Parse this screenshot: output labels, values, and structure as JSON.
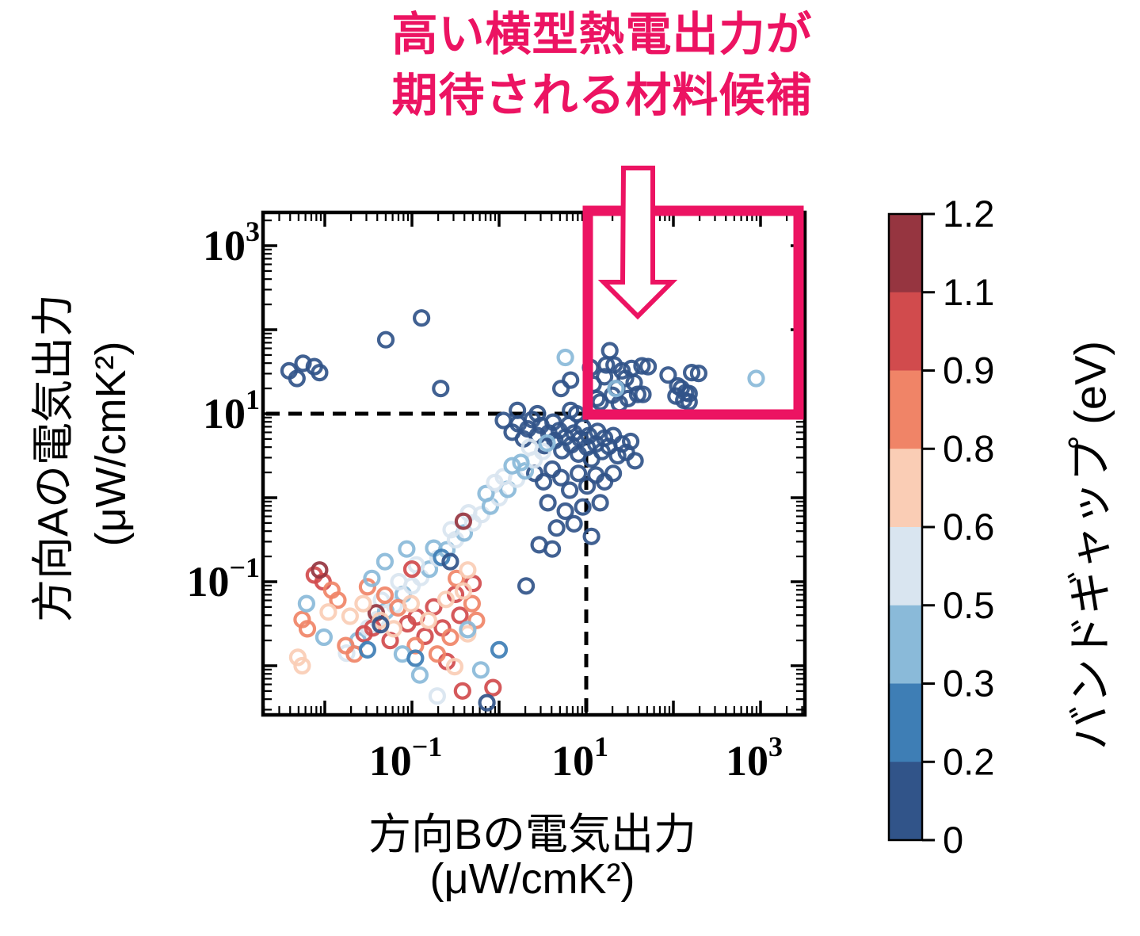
{
  "title": {
    "line1": "高い横型熱電出力が",
    "line2": "期待される材料候補",
    "color": "#EC1362"
  },
  "x_axis": {
    "label_line1": "方向Bの電気出力",
    "label_line2": "(μW/cmK²)",
    "tick_base": "10",
    "tick_exponents_display": [
      "−1",
      "1",
      "3"
    ]
  },
  "y_axis": {
    "label_line1": "方向Aの電気出力",
    "label_line2": "(μW/cmK²)",
    "tick_base": "10",
    "tick_exponents_display": [
      "3",
      "1",
      "−1"
    ]
  },
  "colorbar": {
    "label": "バンドギャップ (eV)",
    "tick_labels": [
      "1.2",
      "1.1",
      "0.9",
      "0.8",
      "0.6",
      "0.5",
      "0.3",
      "0.2",
      "0"
    ],
    "segment_colors_top_to_bottom": [
      "#963540",
      "#D14B4D",
      "#F08467",
      "#FACDB5",
      "#D9E5F0",
      "#8ABAD9",
      "#3E7EB5",
      "#315489"
    ]
  },
  "colors": {
    "accent_pink": "#EC1362",
    "axis_black": "#000000"
  },
  "chart_data": {
    "type": "scatter",
    "x_scale": "log",
    "y_scale": "log",
    "xlabel": "方向Bの電気出力 (μW/cmK²)",
    "ylabel": "方向Aの電気出力 (μW/cmK²)",
    "color_label": "バンドギャップ (eV)",
    "xlim_log10": [
      -2.71,
      3.51
    ],
    "ylim_log10": [
      -2.59,
      3.4
    ],
    "x_ticks_log10": [
      -1,
      1,
      3
    ],
    "y_ticks_log10": [
      3,
      1,
      -1
    ],
    "grid": false,
    "reference_lines": {
      "x_log10": 1,
      "y_log10": 1,
      "style": "dashed"
    },
    "highlight_region": {
      "x_min_log10": 1,
      "y_min_log10": 1,
      "x_max_log10": 3.44,
      "y_max_log10": 3.42,
      "note": "高い横型熱電出力が期待される材料候補"
    },
    "color_bins": [
      {
        "min": 0.0,
        "max": 0.2,
        "color": "#315489"
      },
      {
        "min": 0.2,
        "max": 0.3,
        "color": "#3E7EB5"
      },
      {
        "min": 0.3,
        "max": 0.5,
        "color": "#8ABAD9"
      },
      {
        "min": 0.5,
        "max": 0.6,
        "color": "#D9E5F0"
      },
      {
        "min": 0.6,
        "max": 0.8,
        "color": "#FACDB5"
      },
      {
        "min": 0.8,
        "max": 0.9,
        "color": "#F08467"
      },
      {
        "min": 0.9,
        "max": 1.1,
        "color": "#D14B4D"
      },
      {
        "min": 1.1,
        "max": 1.2,
        "color": "#963540"
      }
    ],
    "points_log10_x_y_bandgap_eV": [
      [
        -2.41,
        1.51,
        0.05
      ],
      [
        -2.32,
        1.42,
        0.1
      ],
      [
        -2.25,
        1.6,
        0.05
      ],
      [
        -2.12,
        1.56,
        0.1
      ],
      [
        -2.06,
        1.49,
        0.05
      ],
      [
        -1.3,
        1.88,
        0.05
      ],
      [
        -0.89,
        2.14,
        0.1
      ],
      [
        -0.67,
        1.3,
        0.05
      ],
      [
        0.21,
        1.04,
        0.1
      ],
      [
        0.44,
        1.0,
        0.05
      ],
      [
        0.82,
        1.04,
        0.1
      ],
      [
        0.89,
        1.0,
        0.05
      ],
      [
        0.71,
        1.3,
        0.1
      ],
      [
        0.82,
        1.4,
        0.05
      ],
      [
        0.76,
        1.67,
        0.45
      ],
      [
        1.27,
        1.75,
        0.05
      ],
      [
        1.23,
        1.58,
        0.1
      ],
      [
        1.32,
        1.58,
        0.05
      ],
      [
        1.21,
        1.44,
        0.1
      ],
      [
        1.41,
        1.51,
        0.05
      ],
      [
        1.52,
        1.54,
        0.1
      ],
      [
        1.55,
        1.37,
        0.05
      ],
      [
        1.64,
        1.57,
        0.1
      ],
      [
        1.71,
        1.56,
        0.05
      ],
      [
        1.59,
        1.23,
        0.1
      ],
      [
        1.65,
        1.23,
        0.05
      ],
      [
        1.94,
        1.46,
        0.1
      ],
      [
        2.05,
        1.33,
        0.05
      ],
      [
        2.09,
        1.3,
        0.1
      ],
      [
        2.14,
        1.25,
        0.05
      ],
      [
        2.18,
        1.24,
        0.1
      ],
      [
        2.21,
        1.49,
        0.05
      ],
      [
        2.29,
        1.48,
        0.1
      ],
      [
        2.03,
        1.21,
        0.05
      ],
      [
        2.12,
        1.16,
        0.1
      ],
      [
        2.18,
        1.14,
        0.05
      ],
      [
        1.16,
        1.14,
        0.1
      ],
      [
        1.12,
        1.18,
        0.05
      ],
      [
        1.35,
        1.3,
        0.1
      ],
      [
        1.45,
        1.42,
        0.05
      ],
      [
        1.3,
        1.22,
        0.1
      ],
      [
        1.48,
        1.18,
        0.05
      ],
      [
        1.38,
        1.12,
        0.15
      ],
      [
        1.05,
        1.55,
        0.1
      ],
      [
        1.08,
        1.35,
        0.05
      ],
      [
        1.34,
        1.3,
        0.35
      ],
      [
        2.95,
        1.42,
        0.45
      ],
      [
        0.05,
        0.92,
        0.1
      ],
      [
        0.15,
        0.78,
        0.05
      ],
      [
        0.22,
        0.88,
        0.1
      ],
      [
        0.28,
        0.7,
        0.15
      ],
      [
        0.33,
        0.82,
        0.05
      ],
      [
        0.38,
        0.93,
        0.1
      ],
      [
        0.44,
        0.74,
        0.05
      ],
      [
        0.48,
        0.86,
        0.1
      ],
      [
        0.52,
        0.62,
        0.15
      ],
      [
        0.57,
        0.77,
        0.05
      ],
      [
        0.62,
        0.9,
        0.1
      ],
      [
        0.64,
        0.68,
        0.05
      ],
      [
        0.69,
        0.8,
        0.1
      ],
      [
        0.72,
        0.56,
        0.15
      ],
      [
        0.76,
        0.72,
        0.05
      ],
      [
        0.8,
        0.87,
        0.1
      ],
      [
        0.83,
        0.63,
        0.05
      ],
      [
        0.86,
        0.77,
        0.1
      ],
      [
        0.91,
        0.52,
        0.15
      ],
      [
        0.93,
        0.7,
        0.05
      ],
      [
        0.96,
        0.84,
        0.1
      ],
      [
        1.01,
        0.6,
        0.05
      ],
      [
        1.03,
        0.74,
        0.1
      ],
      [
        1.06,
        0.46,
        0.15
      ],
      [
        1.11,
        0.64,
        0.05
      ],
      [
        1.13,
        0.79,
        0.1
      ],
      [
        1.18,
        0.55,
        0.05
      ],
      [
        1.21,
        0.71,
        0.1
      ],
      [
        1.26,
        0.61,
        0.15
      ],
      [
        1.31,
        0.74,
        0.05
      ],
      [
        1.36,
        0.5,
        0.1
      ],
      [
        1.41,
        0.64,
        0.05
      ],
      [
        1.46,
        0.54,
        0.1
      ],
      [
        1.51,
        0.67,
        0.05
      ],
      [
        1.56,
        0.44,
        0.15
      ],
      [
        0.41,
        0.29,
        0.05
      ],
      [
        0.51,
        0.19,
        0.1
      ],
      [
        0.61,
        0.34,
        0.05
      ],
      [
        0.71,
        0.24,
        0.1
      ],
      [
        0.81,
        0.09,
        0.15
      ],
      [
        0.91,
        0.29,
        0.05
      ],
      [
        1.01,
        0.14,
        0.1
      ],
      [
        1.11,
        0.27,
        0.05
      ],
      [
        1.21,
        0.19,
        0.1
      ],
      [
        1.31,
        0.29,
        0.05
      ],
      [
        0.56,
        -0.06,
        0.1
      ],
      [
        0.76,
        -0.16,
        0.05
      ],
      [
        0.96,
        -0.11,
        0.1
      ],
      [
        1.16,
        -0.06,
        0.05
      ],
      [
        0.66,
        -0.36,
        0.1
      ],
      [
        0.86,
        -0.31,
        0.05
      ],
      [
        1.06,
        -0.46,
        0.15
      ],
      [
        0.46,
        -0.56,
        0.1
      ],
      [
        0.61,
        -0.61,
        0.05
      ],
      [
        0.31,
        -1.05,
        0.1
      ],
      [
        -1.75,
        -1.85,
        0.5
      ],
      [
        -1.62,
        -1.7,
        0.3
      ],
      [
        -1.5,
        -1.55,
        0.5
      ],
      [
        -1.4,
        -1.45,
        0.55
      ],
      [
        -1.3,
        -1.35,
        0.4
      ],
      [
        -1.2,
        -1.28,
        0.5
      ],
      [
        -1.1,
        -1.15,
        0.3
      ],
      [
        -1.0,
        -1.05,
        0.5
      ],
      [
        -0.9,
        -0.95,
        0.55
      ],
      [
        -0.8,
        -0.85,
        0.4
      ],
      [
        -0.7,
        -0.72,
        0.5
      ],
      [
        -0.6,
        -0.62,
        0.3
      ],
      [
        -0.5,
        -0.5,
        0.5
      ],
      [
        -0.4,
        -0.42,
        0.4
      ],
      [
        -0.3,
        -0.3,
        0.5
      ],
      [
        -0.2,
        -0.2,
        0.55
      ],
      [
        -0.1,
        -0.1,
        0.3
      ],
      [
        0.0,
        0.0,
        0.5
      ],
      [
        0.1,
        0.1,
        0.4
      ],
      [
        0.2,
        0.22,
        0.5
      ],
      [
        0.3,
        0.32,
        0.3
      ],
      [
        0.4,
        0.45,
        0.5
      ],
      [
        0.5,
        0.55,
        0.55
      ],
      [
        0.55,
        0.65,
        0.4
      ],
      [
        -0.95,
        -0.8,
        0.5
      ],
      [
        -0.75,
        -0.6,
        0.3
      ],
      [
        -0.55,
        -0.38,
        0.5
      ],
      [
        -0.35,
        -0.18,
        0.55
      ],
      [
        -0.15,
        0.05,
        0.4
      ],
      [
        0.05,
        0.25,
        0.5
      ],
      [
        0.25,
        0.42,
        0.3
      ],
      [
        -1.15,
        -1.0,
        0.5
      ],
      [
        -1.35,
        -1.22,
        0.55
      ],
      [
        0.35,
        0.6,
        0.5
      ],
      [
        0.15,
        0.38,
        0.4
      ],
      [
        -0.05,
        0.18,
        0.5
      ],
      [
        -2.12,
        -0.92,
        1.0
      ],
      [
        -2.02,
        -1.0,
        0.95
      ],
      [
        -1.55,
        -1.62,
        1.0
      ],
      [
        -1.45,
        -1.55,
        0.95
      ],
      [
        -1.25,
        -1.7,
        1.0
      ],
      [
        -1.05,
        -1.5,
        0.95
      ],
      [
        -0.95,
        -1.42,
        1.0
      ],
      [
        -0.85,
        -1.65,
        0.95
      ],
      [
        -0.75,
        -1.3,
        1.0
      ],
      [
        -0.65,
        -1.55,
        0.95
      ],
      [
        -0.6,
        -1.95,
        1.0
      ],
      [
        -0.5,
        -1.15,
        0.95
      ],
      [
        -0.45,
        -1.4,
        1.0
      ],
      [
        -0.42,
        -2.3,
        0.95
      ],
      [
        -0.07,
        -2.26,
        1.0
      ],
      [
        -1.0,
        -0.85,
        0.95
      ],
      [
        -0.3,
        -1.02,
        1.0
      ],
      [
        -2.06,
        -0.86,
        1.15
      ],
      [
        -1.41,
        -1.37,
        1.15
      ],
      [
        -0.41,
        -0.28,
        1.15
      ],
      [
        -2.26,
        -1.45,
        0.85
      ],
      [
        -2.2,
        -1.56,
        0.85
      ],
      [
        -1.92,
        -1.1,
        0.85
      ],
      [
        -1.85,
        -1.22,
        0.85
      ],
      [
        -1.76,
        -1.76,
        0.85
      ],
      [
        -1.66,
        -1.86,
        0.85
      ],
      [
        -1.31,
        -1.16,
        0.85
      ],
      [
        -1.16,
        -1.31,
        0.85
      ],
      [
        -0.96,
        -1.76,
        0.85
      ],
      [
        -0.71,
        -1.86,
        0.85
      ],
      [
        -0.56,
        -1.66,
        0.85
      ],
      [
        -0.49,
        -0.96,
        0.85
      ],
      [
        -1.51,
        -1.06,
        0.85
      ],
      [
        -0.31,
        -1.26,
        0.85
      ],
      [
        -0.26,
        -1.46,
        0.85
      ],
      [
        -2.31,
        -1.9,
        0.7
      ],
      [
        -2.26,
        -2.0,
        0.7
      ],
      [
        -1.96,
        -1.36,
        0.7
      ],
      [
        -1.56,
        -1.26,
        0.7
      ],
      [
        -1.36,
        -1.46,
        0.7
      ],
      [
        -1.21,
        -1.56,
        0.7
      ],
      [
        -1.01,
        -1.26,
        0.7
      ],
      [
        -0.81,
        -1.46,
        0.7
      ],
      [
        -0.61,
        -1.21,
        0.7
      ],
      [
        -0.41,
        -1.11,
        0.7
      ],
      [
        -0.51,
        -2.01,
        0.7
      ],
      [
        -0.36,
        -0.86,
        0.7
      ],
      [
        -1.71,
        -1.41,
        0.7
      ],
      [
        -0.36,
        -1.62,
        0.7
      ],
      [
        -2.21,
        -1.26,
        0.4
      ],
      [
        -2.01,
        -1.66,
        0.35
      ],
      [
        -1.46,
        -0.96,
        0.4
      ],
      [
        -1.11,
        -1.86,
        0.3
      ],
      [
        -0.91,
        -2.11,
        0.4
      ],
      [
        -0.71,
        -2.36,
        0.5
      ],
      [
        -1.31,
        -0.76,
        0.35
      ],
      [
        -1.51,
        -1.81,
        0.25
      ],
      [
        -0.96,
        -1.91,
        0.25
      ],
      [
        -0.66,
        -0.71,
        0.25
      ],
      [
        -1.06,
        -0.61,
        0.3
      ],
      [
        -1.36,
        -1.51,
        0.1
      ],
      [
        -0.56,
        -0.76,
        0.05
      ],
      [
        -0.21,
        -2.05,
        0.4
      ],
      [
        0.0,
        -1.81,
        0.25
      ],
      [
        -0.36,
        -1.57,
        0.45
      ],
      [
        -0.14,
        -2.44,
        0.05
      ]
    ]
  }
}
